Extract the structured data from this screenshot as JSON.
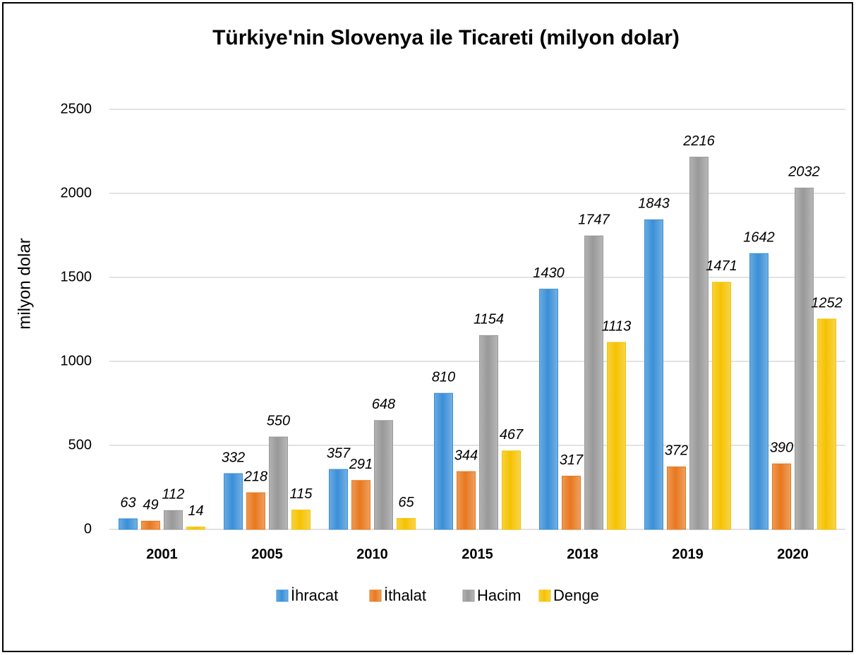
{
  "chart_data": {
    "type": "bar",
    "title": "Türkiye'nin Slovenya ile Ticareti (milyon dolar)",
    "y_label": "milyon dolar",
    "categories": [
      "2001",
      "2005",
      "2010",
      "2015",
      "2018",
      "2019",
      "2020"
    ],
    "series": [
      {
        "name": "İhracat",
        "color": "#3a8fd8",
        "values": [
          63,
          332,
          357,
          810,
          1430,
          1843,
          1642
        ]
      },
      {
        "name": "İthalat",
        "color": "#e8781e",
        "values": [
          49,
          218,
          291,
          344,
          317,
          372,
          390
        ]
      },
      {
        "name": "Hacim",
        "color": "#999999",
        "values": [
          112,
          550,
          648,
          1154,
          1747,
          2216,
          2032
        ]
      },
      {
        "name": "Denge",
        "color": "#f5c200",
        "values": [
          14,
          115,
          65,
          467,
          1113,
          1471,
          1252
        ]
      }
    ],
    "ylim": [
      0,
      2500
    ],
    "yticks": [
      0,
      500,
      1000,
      1500,
      2000,
      2500
    ],
    "grid": true,
    "legend": "bottom"
  }
}
